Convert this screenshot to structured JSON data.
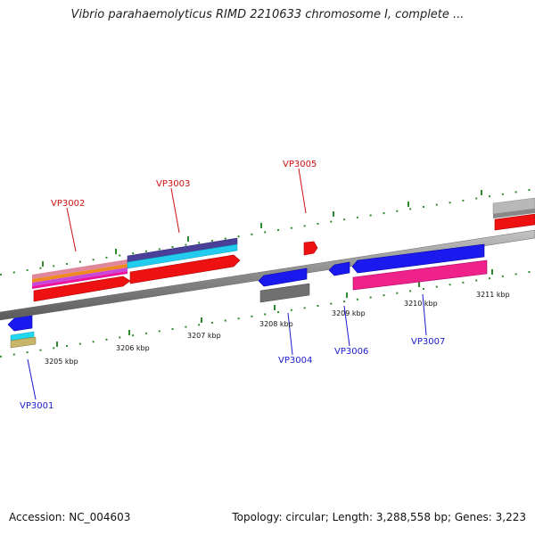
{
  "title": "Vibrio parahaemolyticus RIMD 2210633 chromosome I, complete ...",
  "footer": {
    "accession": "Accession: NC_004603",
    "summary": "Topology: circular; Length: 3,288,558 bp; Genes: 3,223"
  },
  "colors": {
    "backbone": "#8a8a8a",
    "tick_green": "#2f8a2f",
    "label_red": "#cc1111",
    "label_blue": "#1a1acc",
    "leader": "#cc1111"
  },
  "ticks": [
    {
      "label": "3205 kbp"
    },
    {
      "label": "3206 kbp"
    },
    {
      "label": "3207 kbp"
    },
    {
      "label": "3208 kbp"
    },
    {
      "label": "3209 kbp"
    },
    {
      "label": "3210 kbp"
    },
    {
      "label": "3211 kbp"
    }
  ],
  "genes": [
    {
      "label": "VP3001",
      "strand": "minus"
    },
    {
      "label": "VP3002",
      "strand": "plus"
    },
    {
      "label": "VP3003",
      "strand": "plus"
    },
    {
      "label": "VP3004",
      "strand": "minus"
    },
    {
      "label": "VP3005",
      "strand": "plus"
    },
    {
      "label": "VP3006",
      "strand": "minus"
    },
    {
      "label": "VP3007",
      "strand": "minus"
    }
  ]
}
